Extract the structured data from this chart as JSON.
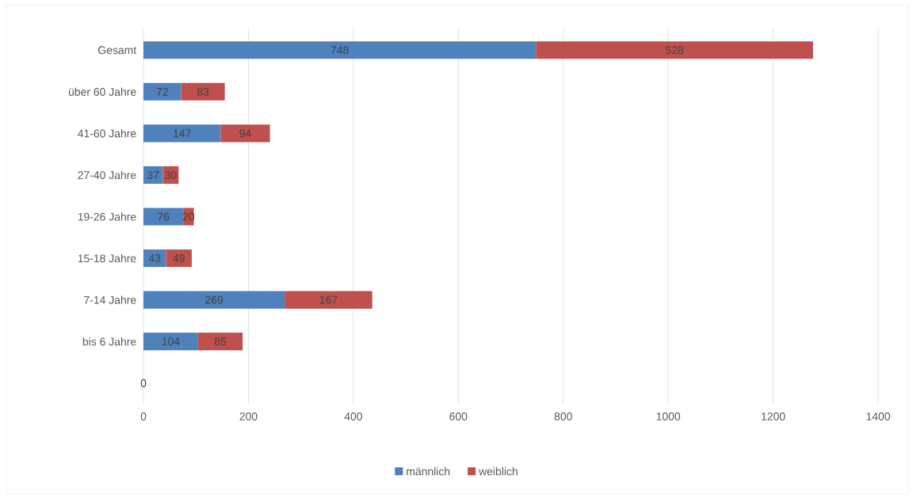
{
  "chart_data": {
    "type": "bar",
    "orientation": "horizontal",
    "stacked": true,
    "categories": [
      "Gesamt",
      "über 60 Jahre",
      "41-60 Jahre",
      "27-40 Jahre",
      "19-26 Jahre",
      "15-18 Jahre",
      "7-14 Jahre",
      "bis 6 Jahre",
      null
    ],
    "series": [
      {
        "name": "männlich",
        "color": "#4f81bd",
        "values": [
          748,
          72,
          147,
          37,
          76,
          43,
          269,
          104,
          0
        ]
      },
      {
        "name": "weiblich",
        "color": "#c0504d",
        "values": [
          528,
          83,
          94,
          30,
          20,
          49,
          167,
          85,
          null
        ]
      }
    ],
    "xlim": [
      0,
      1400
    ],
    "xticks": [
      0,
      200,
      400,
      600,
      800,
      1000,
      1200,
      1400
    ],
    "grid": "x",
    "legend": "bottom",
    "data_labels": true
  }
}
